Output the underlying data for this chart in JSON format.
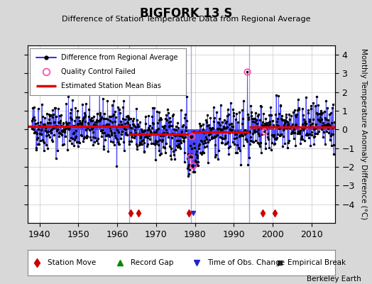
{
  "title": "BIGFORK 13 S",
  "subtitle": "Difference of Station Temperature Data from Regional Average",
  "ylabel": "Monthly Temperature Anomaly Difference (°C)",
  "xlabel_credit": "Berkeley Earth",
  "xlim": [
    1937,
    2016
  ],
  "ylim": [
    -5,
    4.5
  ],
  "yticks": [
    -4,
    -3,
    -2,
    -1,
    0,
    1,
    2,
    3,
    4
  ],
  "xticks": [
    1940,
    1950,
    1960,
    1970,
    1980,
    1990,
    2000,
    2010
  ],
  "bg_color": "#d8d8d8",
  "plot_bg_color": "#ffffff",
  "line_color": "#3333ff",
  "marker_color": "#000000",
  "bias_color": "#dd0000",
  "qc_color": "#ff69b4",
  "vertical_line_color": "#aaaadd",
  "vertical_lines": [
    1963,
    1979,
    1994
  ],
  "bias_segments": [
    {
      "x": [
        1937,
        1963
      ],
      "y": [
        0.15,
        0.15
      ]
    },
    {
      "x": [
        1963,
        1979
      ],
      "y": [
        -0.25,
        -0.25
      ]
    },
    {
      "x": [
        1979,
        1994
      ],
      "y": [
        -0.15,
        -0.15
      ]
    },
    {
      "x": [
        1994,
        2016
      ],
      "y": [
        0.12,
        0.12
      ]
    }
  ],
  "station_moves": [
    1963.5,
    1965.5,
    1978.5,
    1997.5,
    2000.5
  ],
  "time_of_obs_changes": [
    1979.5
  ],
  "seed": 42
}
